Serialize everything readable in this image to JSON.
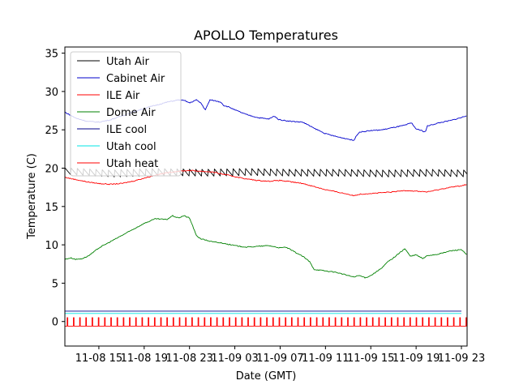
{
  "chart_data": {
    "type": "line",
    "title": "APOLLO Temperatures",
    "xlabel": "Date (GMT)",
    "ylabel": "Temperature (C)",
    "xlim": [
      12,
      47.5
    ],
    "ylim": [
      -3.2,
      35.8
    ],
    "x_ticks": [
      {
        "value": 15,
        "label": "11-08 15"
      },
      {
        "value": 19,
        "label": "11-08 19"
      },
      {
        "value": 23,
        "label": "11-08 23"
      },
      {
        "value": 27,
        "label": "11-09 03"
      },
      {
        "value": 31,
        "label": "11-09 07"
      },
      {
        "value": 35,
        "label": "11-09 11"
      },
      {
        "value": 39,
        "label": "11-09 15"
      },
      {
        "value": 43,
        "label": "11-09 19"
      },
      {
        "value": 47,
        "label": "11-09 23"
      }
    ],
    "y_ticks": [
      0,
      5,
      10,
      15,
      20,
      25,
      30,
      35
    ],
    "legend_position": "top-left",
    "series": [
      {
        "name": "Utah Air",
        "color": "#000000",
        "style": "sawtooth",
        "base": 19.0,
        "amplitude": 0.9,
        "period": 0.55,
        "x": [
          12,
          16,
          20,
          24,
          28,
          32,
          36,
          40,
          44,
          47.5
        ],
        "y": [
          19.6,
          19.3,
          19.5,
          19.4,
          19.5,
          19.4,
          19.4,
          19.3,
          19.4,
          19.3
        ]
      },
      {
        "name": "Cabinet Air",
        "color": "#0000cc",
        "style": "line",
        "x": [
          12,
          12.5,
          13,
          14,
          15,
          16,
          17,
          18,
          19,
          20,
          21,
          22,
          22.6,
          23,
          23.6,
          24,
          24.4,
          24.8,
          25.2,
          25.8,
          26,
          26.6,
          27,
          28,
          29,
          30,
          30.5,
          30.8,
          31,
          32,
          33,
          34,
          35,
          36,
          37,
          37.5,
          37.8,
          38,
          39,
          40,
          41,
          42,
          42.6,
          43,
          43.5,
          43.8,
          44,
          45,
          46,
          47,
          47.5
        ],
        "y": [
          27.3,
          26.9,
          26.5,
          26.1,
          26.0,
          26.3,
          26.8,
          27.3,
          27.8,
          28.2,
          28.6,
          28.9,
          28.8,
          28.5,
          28.9,
          28.5,
          27.6,
          28.9,
          28.8,
          28.6,
          28.2,
          27.9,
          27.6,
          27.0,
          26.6,
          26.4,
          26.8,
          26.4,
          26.3,
          26.1,
          26.0,
          25.2,
          24.5,
          24.1,
          23.8,
          23.6,
          24.4,
          24.7,
          24.9,
          25.0,
          25.3,
          25.6,
          25.9,
          25.1,
          24.9,
          24.7,
          25.5,
          25.9,
          26.2,
          26.6,
          26.9
        ]
      },
      {
        "name": "ILE Air",
        "color": "#ff0000",
        "style": "line",
        "x": [
          12,
          13,
          14,
          15,
          16,
          17,
          18,
          19,
          20,
          21,
          22,
          23,
          24,
          25,
          26,
          27,
          28,
          29,
          30,
          31,
          32,
          33,
          34,
          35,
          36,
          37,
          37.5,
          38,
          39,
          40,
          41,
          42,
          43,
          44,
          45,
          46,
          47,
          47.5
        ],
        "y": [
          18.8,
          18.5,
          18.2,
          18.0,
          17.9,
          18.0,
          18.3,
          18.7,
          19.1,
          19.4,
          19.6,
          19.7,
          19.6,
          19.5,
          19.2,
          18.9,
          18.6,
          18.4,
          18.3,
          18.4,
          18.2,
          18.0,
          17.6,
          17.2,
          16.9,
          16.6,
          16.4,
          16.6,
          16.7,
          16.8,
          16.9,
          17.1,
          17.0,
          16.9,
          17.2,
          17.5,
          17.7,
          17.9
        ]
      },
      {
        "name": "Dome Air",
        "color": "#008000",
        "style": "line",
        "x": [
          12,
          12.5,
          13,
          13.5,
          14,
          14.5,
          15,
          16,
          17,
          18,
          19,
          20,
          21,
          21.5,
          22,
          22.5,
          23,
          23.3,
          23.6,
          24,
          25,
          26,
          27,
          28,
          29,
          30,
          31,
          31.5,
          32,
          33,
          33.6,
          34,
          34.5,
          35,
          36,
          37,
          37.5,
          38,
          38.5,
          39,
          40,
          40.5,
          41,
          42,
          42.5,
          43,
          43.6,
          44,
          45,
          46,
          47,
          47.5
        ],
        "y": [
          8.1,
          8.3,
          8.1,
          8.2,
          8.5,
          9.0,
          9.6,
          10.4,
          11.2,
          12.0,
          12.8,
          13.4,
          13.3,
          13.8,
          13.5,
          13.8,
          13.5,
          12.4,
          11.2,
          10.8,
          10.4,
          10.2,
          9.9,
          9.7,
          9.8,
          9.9,
          9.6,
          9.7,
          9.3,
          8.5,
          7.8,
          6.8,
          6.7,
          6.6,
          6.4,
          6.0,
          5.8,
          6.0,
          5.7,
          6.0,
          7.0,
          7.8,
          8.3,
          9.5,
          8.5,
          8.7,
          8.2,
          8.6,
          8.8,
          9.2,
          9.4,
          8.6
        ]
      },
      {
        "name": "ILE cool",
        "color": "#00008b",
        "style": "flat",
        "x": [
          12,
          47.5
        ],
        "y": [
          1.35,
          1.35
        ]
      },
      {
        "name": "Utah cool",
        "color": "#00e5e5",
        "style": "flat",
        "x": [
          12,
          47.5
        ],
        "y": [
          1.05,
          1.05
        ]
      },
      {
        "name": "Utah heat",
        "color": "#ff0000",
        "style": "pulse",
        "base": -0.6,
        "top": 0.5,
        "period": 0.55,
        "x": [
          12,
          47.5
        ],
        "y": [
          -0.6,
          -0.6
        ]
      }
    ]
  }
}
